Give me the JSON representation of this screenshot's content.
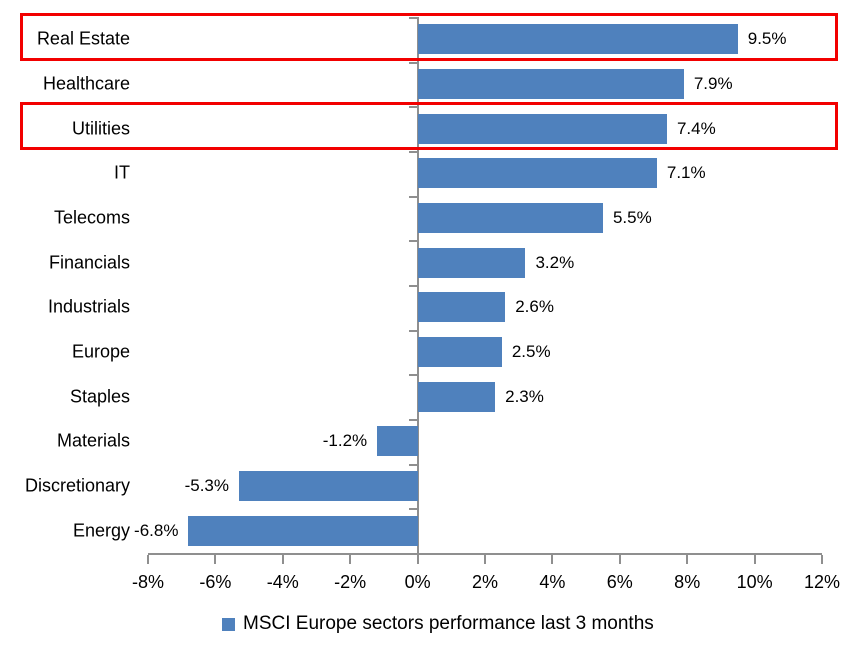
{
  "chart_data": {
    "type": "bar",
    "orientation": "horizontal",
    "categories": [
      "Real Estate",
      "Healthcare",
      "Utilities",
      "IT",
      "Telecoms",
      "Financials",
      "Industrials",
      "Europe",
      "Staples",
      "Materials",
      "Discretionary",
      "Energy"
    ],
    "values": [
      9.5,
      7.9,
      7.4,
      7.1,
      5.5,
      3.2,
      2.6,
      2.5,
      2.3,
      -1.2,
      -5.3,
      -6.8
    ],
    "value_labels": [
      "9.5%",
      "7.9%",
      "7.4%",
      "7.1%",
      "5.5%",
      "3.2%",
      "2.6%",
      "2.5%",
      "2.3%",
      "-1.2%",
      "-5.3%",
      "-6.8%"
    ],
    "x_axis": {
      "tick_labels": [
        "-8%",
        "-6%",
        "-4%",
        "-2%",
        "0%",
        "2%",
        "4%",
        "6%",
        "8%",
        "10%",
        "12%"
      ],
      "tick_values": [
        -8,
        -6,
        -4,
        -2,
        0,
        2,
        4,
        6,
        8,
        10,
        12
      ],
      "min": -8,
      "max": 12
    },
    "legend": {
      "label": "MSCI Europe sectors performance last 3 months",
      "position": "bottom"
    },
    "highlighted_categories": [
      "Real Estate",
      "Utilities"
    ],
    "grid": false,
    "colors": {
      "bar": "#4f81bd",
      "highlight_box": "#f20000",
      "axis": "#8f8f8f",
      "text": "#000000",
      "background": "#ffffff"
    }
  }
}
